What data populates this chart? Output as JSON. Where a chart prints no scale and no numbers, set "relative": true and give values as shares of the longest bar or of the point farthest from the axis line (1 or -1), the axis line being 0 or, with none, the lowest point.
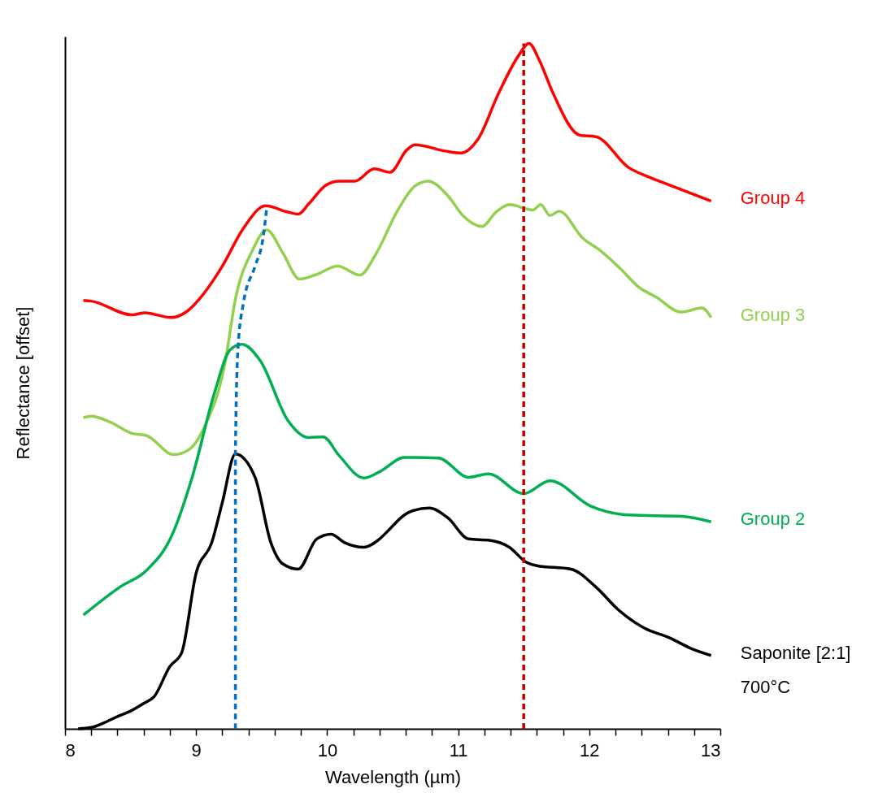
{
  "chart_data": {
    "type": "line",
    "xlabel": "Wavelength (µm)",
    "ylabel": "Reflectance [offset]",
    "relative": true,
    "xlim": [
      8,
      13
    ],
    "xticks": [
      8,
      {
        "value": 8.2,
        "label": null
      },
      {
        "value": 8.4,
        "label": null
      },
      {
        "value": 8.6,
        "label": null
      },
      {
        "value": 8.8,
        "label": null
      },
      9,
      {
        "value": 9.2,
        "label": null
      },
      {
        "value": 9.4,
        "label": null
      },
      {
        "value": 9.6,
        "label": null
      },
      {
        "value": 9.8,
        "label": null
      },
      10,
      {
        "value": 10.2,
        "label": null
      },
      {
        "value": 10.4,
        "label": null
      },
      {
        "value": 10.6,
        "label": null
      },
      {
        "value": 10.8,
        "label": null
      },
      11,
      {
        "value": 11.2,
        "label": null
      },
      {
        "value": 11.4,
        "label": null
      },
      {
        "value": 11.6,
        "label": null
      },
      {
        "value": 11.8,
        "label": null
      },
      12,
      {
        "value": 12.2,
        "label": null
      },
      {
        "value": 12.4,
        "label": null
      },
      {
        "value": 12.6,
        "label": null
      },
      {
        "value": 12.8,
        "label": null
      },
      13
    ],
    "grid": false,
    "legend": false,
    "series": [
      {
        "name": "Group 4",
        "color": "#ff0000",
        "x": [
          8.14,
          8.2,
          8.51,
          8.61,
          8.81,
          8.93,
          9.05,
          9.2,
          9.36,
          9.53,
          9.7,
          9.78,
          9.86,
          9.99,
          10.09,
          10.21,
          10.36,
          10.48,
          10.61,
          10.67,
          10.9,
          11.02,
          11.15,
          11.31,
          11.46,
          11.54,
          11.62,
          11.72,
          11.93,
          12.05,
          12.3,
          12.47,
          12.55,
          12.93
        ],
        "values": [
          0.625,
          0.624,
          0.604,
          0.607,
          0.6,
          0.609,
          0.633,
          0.675,
          0.73,
          0.763,
          0.754,
          0.751,
          0.766,
          0.793,
          0.799,
          0.799,
          0.817,
          0.812,
          0.845,
          0.852,
          0.843,
          0.84,
          0.86,
          0.928,
          0.982,
          1.0,
          0.975,
          0.929,
          0.866,
          0.864,
          0.819,
          0.804,
          0.798,
          0.77
        ]
      },
      {
        "name": "Group 3",
        "color": "#92d050",
        "x": [
          8.14,
          8.2,
          8.35,
          8.51,
          8.62,
          8.83,
          8.95,
          9.07,
          9.22,
          9.3,
          9.43,
          9.54,
          9.66,
          9.79,
          9.92,
          10.08,
          10.25,
          10.37,
          10.54,
          10.67,
          10.77,
          10.92,
          11.04,
          11.18,
          11.29,
          11.39,
          11.57,
          11.63,
          11.7,
          11.77,
          11.95,
          12.09,
          12.24,
          12.38,
          12.51,
          12.7,
          12.86,
          12.93
        ],
        "values": [
          0.454,
          0.456,
          0.447,
          0.431,
          0.428,
          0.4,
          0.408,
          0.443,
          0.533,
          0.627,
          0.698,
          0.728,
          0.695,
          0.656,
          0.663,
          0.675,
          0.662,
          0.692,
          0.757,
          0.792,
          0.799,
          0.778,
          0.748,
          0.733,
          0.754,
          0.765,
          0.757,
          0.765,
          0.749,
          0.755,
          0.716,
          0.697,
          0.671,
          0.644,
          0.63,
          0.608,
          0.614,
          0.6
        ]
      },
      {
        "name": "Group 2",
        "color": "#00b050",
        "x": [
          8.14,
          8.42,
          8.62,
          8.81,
          8.97,
          9.14,
          9.26,
          9.35,
          9.49,
          9.7,
          9.86,
          9.97,
          10.09,
          10.28,
          10.4,
          10.59,
          10.65,
          10.85,
          11.08,
          11.23,
          11.5,
          11.7,
          12.01,
          12.3,
          12.71,
          12.93
        ],
        "values": [
          0.166,
          0.207,
          0.231,
          0.28,
          0.367,
          0.49,
          0.553,
          0.561,
          0.537,
          0.45,
          0.425,
          0.426,
          0.399,
          0.366,
          0.375,
          0.396,
          0.396,
          0.395,
          0.367,
          0.372,
          0.343,
          0.362,
          0.325,
          0.312,
          0.31,
          0.302
        ]
      },
      {
        "name": "Saponite [2:1]\n700°C",
        "color": "#000000",
        "x": [
          8.1,
          8.2,
          8.3,
          8.4,
          8.5,
          8.6,
          8.68,
          8.8,
          8.89,
          9.0,
          9.12,
          9.2,
          9.3,
          9.45,
          9.57,
          9.66,
          9.78,
          9.92,
          10.03,
          10.13,
          10.28,
          10.4,
          10.48,
          10.59,
          10.65,
          10.78,
          10.92,
          11.08,
          11.24,
          11.39,
          11.52,
          11.6,
          11.86,
          12.05,
          12.22,
          12.42,
          12.61,
          12.78,
          12.93
        ],
        "values": [
          0.0,
          0.002,
          0.009,
          0.018,
          0.026,
          0.037,
          0.047,
          0.091,
          0.111,
          0.227,
          0.272,
          0.33,
          0.401,
          0.367,
          0.272,
          0.241,
          0.233,
          0.277,
          0.284,
          0.272,
          0.265,
          0.277,
          0.292,
          0.312,
          0.318,
          0.322,
          0.308,
          0.277,
          0.275,
          0.265,
          0.243,
          0.238,
          0.233,
          0.207,
          0.174,
          0.147,
          0.133,
          0.117,
          0.107
        ]
      },
      {
        "color": "#0070c0",
        "line_style": "dashed",
        "x": [
          9.3,
          9.3,
          9.32,
          9.36,
          9.45,
          9.51,
          9.54
        ],
        "values": [
          0.0,
          0.401,
          0.556,
          0.62,
          0.675,
          0.715,
          0.762
        ]
      },
      {
        "color": "#c00000",
        "line_style": "dashed",
        "x": [
          11.5,
          11.5
        ],
        "values": [
          0.0,
          1.0
        ]
      }
    ]
  }
}
